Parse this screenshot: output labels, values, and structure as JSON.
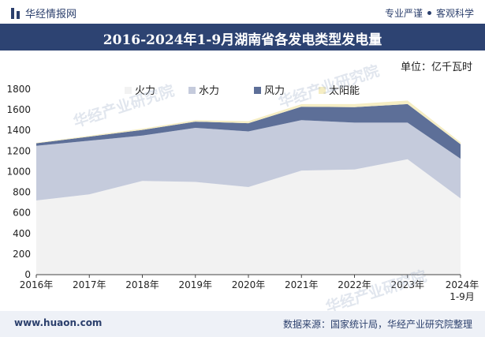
{
  "header": {
    "brand": "华经情报网",
    "tagline_left": "专业严谨",
    "tagline_right": "客观科学"
  },
  "title": "2016-2024年1-9月湖南省各发电类型发电量",
  "unit": "单位：亿千瓦时",
  "footer": {
    "site": "www.huaon.com",
    "source": "数据来源：国家统计局，华经产业研究院整理"
  },
  "watermark": "华经产业研究院",
  "colors": {
    "thermal": "#f2f2f2",
    "hydro": "#c5cbdc",
    "wind": "#5d6f98",
    "solar": "#f5edc3",
    "title_bg": "#2d4372"
  },
  "chart_data": {
    "type": "area",
    "stacked": true,
    "categories": [
      "2016年",
      "2017年",
      "2018年",
      "2019年",
      "2020年",
      "2021年",
      "2022年",
      "2023年",
      "2024年\n1-9月"
    ],
    "series": [
      {
        "name": "火力",
        "values": [
          720,
          780,
          910,
          900,
          850,
          1010,
          1020,
          1120,
          740
        ]
      },
      {
        "name": "水力",
        "values": [
          530,
          520,
          440,
          525,
          540,
          490,
          455,
          355,
          385
        ]
      },
      {
        "name": "风力",
        "values": [
          25,
          40,
          55,
          60,
          80,
          130,
          150,
          180,
          140
        ]
      },
      {
        "name": "太阳能",
        "values": [
          5,
          8,
          12,
          15,
          20,
          25,
          30,
          35,
          20
        ]
      }
    ],
    "ylim": [
      0,
      1800
    ],
    "yticks": [
      0,
      200,
      400,
      600,
      800,
      1000,
      1200,
      1400,
      1600,
      1800
    ],
    "legend_position": "top-center",
    "grid": false
  }
}
